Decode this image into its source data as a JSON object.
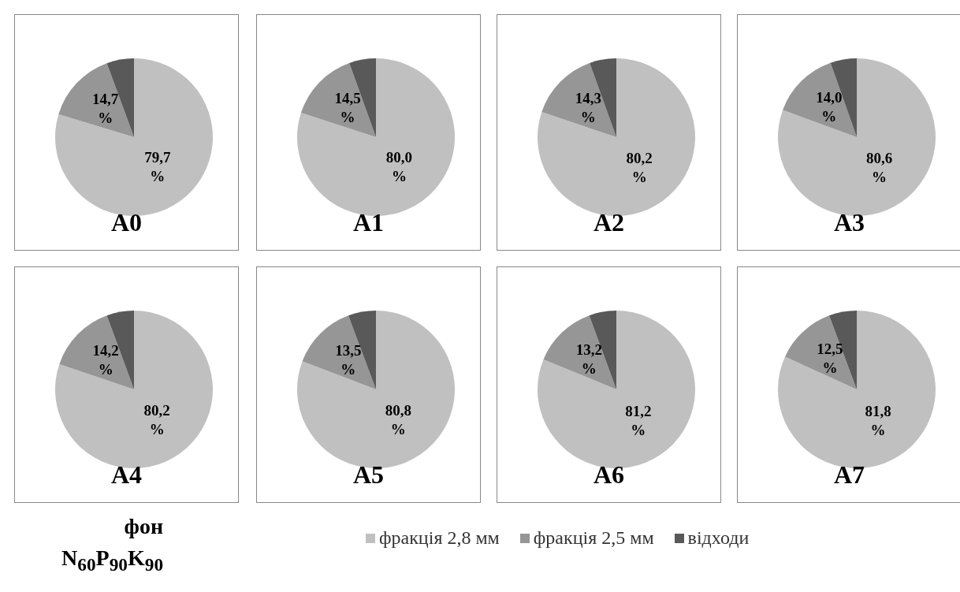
{
  "chart_data": [
    {
      "type": "pie",
      "title": "A0",
      "categories": [
        null,
        null,
        null
      ],
      "values": [
        79.7,
        14.7,
        5.6
      ],
      "colors": [
        "#c0c0c0",
        "#969696",
        "#595959"
      ],
      "value_labels": [
        "79,7 %",
        "14,7 %",
        null
      ],
      "legend": false
    },
    {
      "type": "pie",
      "title": "A1",
      "categories": [
        null,
        null,
        null
      ],
      "values": [
        80.0,
        14.5,
        5.5
      ],
      "colors": [
        "#c0c0c0",
        "#969696",
        "#595959"
      ],
      "value_labels": [
        "80,0 %",
        "14,5 %",
        null
      ],
      "legend": false
    },
    {
      "type": "pie",
      "title": "A2",
      "categories": [
        null,
        null,
        null
      ],
      "values": [
        80.2,
        14.3,
        5.5
      ],
      "colors": [
        "#c0c0c0",
        "#969696",
        "#595959"
      ],
      "value_labels": [
        "80,2 %",
        "14,3 %",
        null
      ],
      "legend": false
    },
    {
      "type": "pie",
      "title": "A3",
      "categories": [
        null,
        null,
        null
      ],
      "values": [
        80.6,
        14.0,
        5.4
      ],
      "colors": [
        "#c0c0c0",
        "#969696",
        "#595959"
      ],
      "value_labels": [
        "80,6 %",
        "14,0 %",
        null
      ],
      "legend": false
    },
    {
      "type": "pie",
      "title": "A4",
      "categories": [
        null,
        null,
        null
      ],
      "values": [
        80.2,
        14.2,
        5.6
      ],
      "colors": [
        "#c0c0c0",
        "#969696",
        "#595959"
      ],
      "value_labels": [
        "80,2 %",
        "14,2 %",
        null
      ],
      "legend": false,
      "annotations": [
        "фон",
        "N$_{60}$P$_{90}$K$_{90}$"
      ]
    },
    {
      "type": "pie",
      "title": "A5",
      "categories": [
        null,
        null,
        null
      ],
      "values": [
        80.8,
        13.5,
        5.7
      ],
      "colors": [
        "#c0c0c0",
        "#969696",
        "#595959"
      ],
      "value_labels": [
        "80,8 %",
        "13,5 %",
        null
      ],
      "legend": false
    },
    {
      "type": "pie",
      "title": "A6",
      "categories": [
        null,
        null,
        null
      ],
      "values": [
        81.2,
        13.2,
        5.6
      ],
      "colors": [
        "#c0c0c0",
        "#969696",
        "#595959"
      ],
      "value_labels": [
        "81,2 %",
        "13,2 %",
        null
      ],
      "legend": false
    },
    {
      "type": "pie",
      "title": "A7",
      "categories": [
        "фракція 2,8 мм",
        "фракція 2,5 мм",
        "відходи"
      ],
      "values": [
        81.8,
        12.5,
        5.7
      ],
      "colors": [
        "#c0c0c0",
        "#969696",
        "#595959"
      ],
      "value_labels": [
        "81,8 %",
        "12,5 %",
        null
      ],
      "legend": "bottom"
    }
  ]
}
